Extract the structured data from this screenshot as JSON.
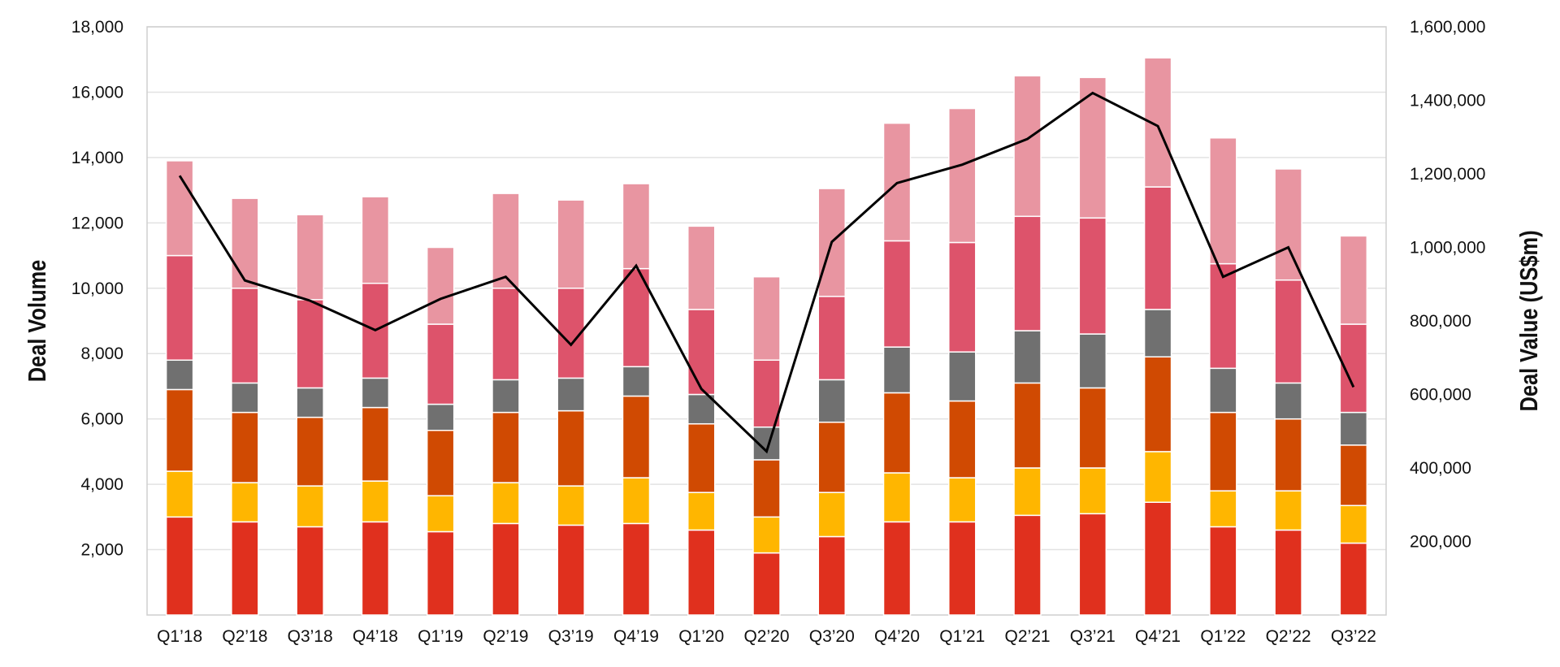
{
  "chart_data": {
    "type": "bar+line",
    "title": "",
    "xlabel": "",
    "ylabel": "Deal Volume",
    "y2label": "Deal Value (US$m)",
    "ylim": [
      0,
      18000
    ],
    "y2lim": [
      0,
      1600000
    ],
    "yticks": [
      "2,000",
      "4,000",
      "6,000",
      "8,000",
      "10,000",
      "12,000",
      "14,000",
      "16,000",
      "18,000"
    ],
    "y2ticks": [
      "200,000",
      "400,000",
      "600,000",
      "800,000",
      "1,000,000",
      "1,200,000",
      "1,400,000",
      "1,600,000"
    ],
    "grid": true,
    "legend": "none",
    "categories": [
      "Q1’18",
      "Q2’18",
      "Q3’18",
      "Q4’18",
      "Q1’19",
      "Q2’19",
      "Q3’19",
      "Q4’19",
      "Q1’20",
      "Q2’20",
      "Q3’20",
      "Q4’20",
      "Q1’21",
      "Q2’21",
      "Q3’21",
      "Q4’21",
      "Q1’22",
      "Q2’22",
      "Q3’22"
    ],
    "stacked_series": [
      {
        "color": "#E0301E",
        "values": [
          3000,
          2850,
          2700,
          2850,
          2550,
          2800,
          2750,
          2800,
          2600,
          1900,
          2400,
          2850,
          2850,
          3050,
          3100,
          3450,
          2700,
          2600,
          2200
        ]
      },
      {
        "color": "#FFB600",
        "values": [
          1400,
          1200,
          1250,
          1250,
          1100,
          1250,
          1200,
          1400,
          1150,
          1100,
          1350,
          1500,
          1350,
          1450,
          1400,
          1550,
          1100,
          1200,
          1150
        ]
      },
      {
        "color": "#D04A02",
        "values": [
          2500,
          2150,
          2100,
          2250,
          2000,
          2150,
          2300,
          2500,
          2100,
          1750,
          2150,
          2450,
          2350,
          2600,
          2450,
          2900,
          2400,
          2200,
          1850
        ]
      },
      {
        "color": "#707070",
        "values": [
          900,
          900,
          900,
          900,
          800,
          1000,
          1000,
          900,
          900,
          1000,
          1300,
          1400,
          1500,
          1600,
          1650,
          1450,
          1350,
          1100,
          1000
        ]
      },
      {
        "color": "#DD536B",
        "values": [
          3200,
          2900,
          2700,
          2900,
          2450,
          2800,
          2750,
          3000,
          2600,
          2050,
          2550,
          3250,
          3350,
          3500,
          3550,
          3750,
          3200,
          3150,
          2700
        ]
      },
      {
        "color": "#E895A1",
        "values": [
          2900,
          2750,
          2600,
          2650,
          2350,
          2900,
          2700,
          2600,
          2550,
          2550,
          3300,
          3600,
          4100,
          4300,
          4300,
          3950,
          3850,
          3400,
          2700
        ]
      }
    ],
    "line_series": {
      "axis": "right",
      "color": "#000000",
      "values": [
        1195000,
        910000,
        855000,
        775000,
        860000,
        920000,
        735000,
        950000,
        615000,
        445000,
        1015000,
        1175000,
        1225000,
        1295000,
        1420000,
        1330000,
        920000,
        1000000,
        620000
      ]
    }
  }
}
